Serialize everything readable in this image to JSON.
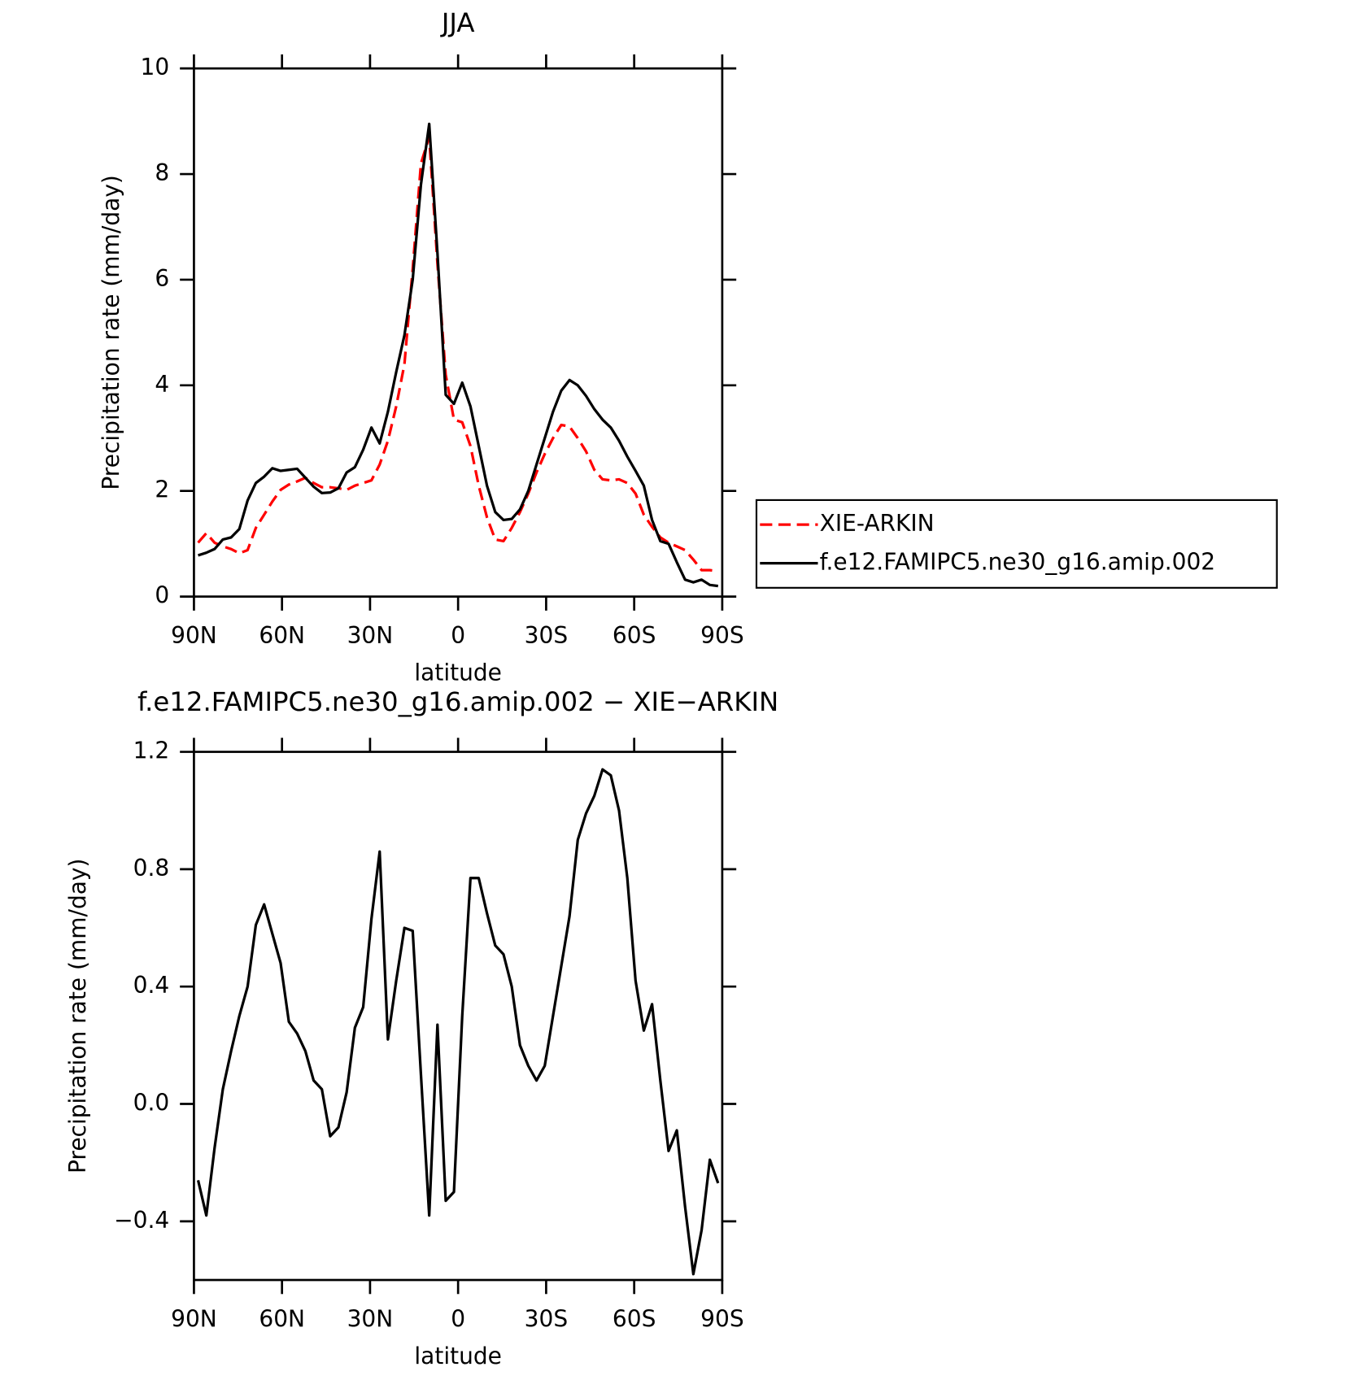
{
  "chart_data": [
    {
      "type": "line",
      "title": "JJA",
      "xlabel": "latitude",
      "ylabel": "Precipitation rate (mm/day)",
      "x": [
        88.59,
        85.78,
        82.97,
        80.16,
        77.34,
        74.53,
        71.72,
        68.91,
        66.09,
        63.28,
        60.47,
        57.66,
        54.84,
        52.03,
        49.22,
        46.41,
        43.59,
        40.78,
        37.97,
        35.16,
        32.34,
        29.53,
        26.72,
        23.91,
        21.09,
        18.28,
        15.47,
        12.66,
        9.84,
        7.03,
        4.22,
        1.41,
        -1.41,
        -4.22,
        -7.03,
        -9.84,
        -12.66,
        -15.47,
        -18.28,
        -21.09,
        -23.91,
        -26.72,
        -29.53,
        -32.34,
        -35.16,
        -37.97,
        -40.78,
        -43.59,
        -46.41,
        -49.22,
        -52.03,
        -54.84,
        -57.66,
        -60.47,
        -63.28,
        -66.09,
        -68.91,
        -71.72,
        -74.53,
        -77.34,
        -80.16,
        -82.97,
        -85.78,
        -88.59
      ],
      "xlim": [
        90,
        -90
      ],
      "xticks": [
        {
          "value": 90,
          "label": "90N"
        },
        {
          "value": 60,
          "label": "60N"
        },
        {
          "value": 30,
          "label": "30N"
        },
        0,
        {
          "value": -30,
          "label": "30S"
        },
        {
          "value": -60,
          "label": "60S"
        },
        {
          "value": -90,
          "label": "90S"
        }
      ],
      "ylim": [
        0,
        10
      ],
      "yticks": [
        0,
        2,
        4,
        6,
        8,
        10
      ],
      "legend": "right",
      "series": [
        {
          "name": "XIE-ARKIN",
          "color": "#ff0000",
          "dashed": true,
          "values": [
            1.02,
            1.2,
            1.02,
            0.95,
            0.9,
            0.82,
            0.88,
            1.3,
            1.55,
            1.8,
            2.02,
            2.12,
            2.18,
            2.25,
            2.15,
            2.07,
            2.07,
            2.05,
            2.02,
            2.1,
            2.15,
            2.2,
            2.5,
            2.95,
            3.6,
            4.4,
            6.2,
            8.2,
            8.7,
            6.3,
            4.2,
            3.35,
            3.3,
            2.85,
            2.1,
            1.5,
            1.08,
            1.05,
            1.3,
            1.6,
            1.95,
            2.35,
            2.7,
            3.0,
            3.25,
            3.22,
            3.0,
            2.75,
            2.4,
            2.22,
            2.2,
            2.22,
            2.15,
            1.95,
            1.55,
            1.32,
            1.12,
            1.02,
            0.95,
            0.88,
            0.7,
            0.5,
            0.5,
            0.48
          ]
        },
        {
          "name": "f.e12.FAMIPC5.ne30_g16.amip.002",
          "color": "#000000",
          "dashed": false,
          "values": [
            0.78,
            0.83,
            0.9,
            1.08,
            1.12,
            1.28,
            1.82,
            2.15,
            2.27,
            2.43,
            2.38,
            2.4,
            2.42,
            2.25,
            2.08,
            1.96,
            1.97,
            2.05,
            2.35,
            2.45,
            2.78,
            3.2,
            2.9,
            3.5,
            4.25,
            4.95,
            6.0,
            7.8,
            8.95,
            6.5,
            3.82,
            3.65,
            4.05,
            3.6,
            2.85,
            2.1,
            1.6,
            1.45,
            1.47,
            1.65,
            2.0,
            2.5,
            3.0,
            3.5,
            3.9,
            4.1,
            4.0,
            3.8,
            3.55,
            3.35,
            3.2,
            2.95,
            2.65,
            2.38,
            2.1,
            1.45,
            1.05,
            1.0,
            0.65,
            0.32,
            0.27,
            0.32,
            0.22,
            0.2
          ]
        }
      ]
    },
    {
      "type": "line",
      "title": "f.e12.FAMIPC5.ne30_g16.amip.002 − XIE−ARKIN",
      "xlabel": "latitude",
      "ylabel": "Precipitation rate (mm/day)",
      "x": [
        88.59,
        85.78,
        82.97,
        80.16,
        77.34,
        74.53,
        71.72,
        68.91,
        66.09,
        63.28,
        60.47,
        57.66,
        54.84,
        52.03,
        49.22,
        46.41,
        43.59,
        40.78,
        37.97,
        35.16,
        32.34,
        29.53,
        26.72,
        23.91,
        21.09,
        18.28,
        15.47,
        12.66,
        9.84,
        7.03,
        4.22,
        1.41,
        -1.41,
        -4.22,
        -7.03,
        -9.84,
        -12.66,
        -15.47,
        -18.28,
        -21.09,
        -23.91,
        -26.72,
        -29.53,
        -32.34,
        -35.16,
        -37.97,
        -40.78,
        -43.59,
        -46.41,
        -49.22,
        -52.03,
        -54.84,
        -57.66,
        -60.47,
        -63.28,
        -66.09,
        -68.91,
        -71.72,
        -74.53,
        -77.34,
        -80.16,
        -82.97,
        -85.78,
        -88.59
      ],
      "xlim": [
        90,
        -90
      ],
      "xticks": [
        {
          "value": 90,
          "label": "90N"
        },
        {
          "value": 60,
          "label": "60N"
        },
        {
          "value": 30,
          "label": "30N"
        },
        0,
        {
          "value": -30,
          "label": "30S"
        },
        {
          "value": -60,
          "label": "60S"
        },
        {
          "value": -90,
          "label": "90S"
        }
      ],
      "ylim": [
        -0.6,
        1.2
      ],
      "yticks": [
        {
          "value": -0.4,
          "label": "−0.4"
        },
        {
          "value": 0,
          "label": "0.0"
        },
        0.4,
        0.8,
        1.2
      ],
      "series": [
        {
          "color": "#000000",
          "dashed": false,
          "values": [
            -0.26,
            -0.38,
            -0.15,
            0.05,
            0.18,
            0.3,
            0.4,
            0.61,
            0.68,
            0.58,
            0.48,
            0.28,
            0.24,
            0.18,
            0.08,
            0.05,
            -0.11,
            -0.08,
            0.04,
            0.26,
            0.33,
            0.63,
            0.86,
            0.22,
            0.42,
            0.6,
            0.59,
            0.1,
            -0.38,
            0.27,
            -0.33,
            -0.3,
            0.3,
            0.77,
            0.77,
            0.65,
            0.54,
            0.51,
            0.4,
            0.2,
            0.13,
            0.08,
            0.13,
            0.3,
            0.47,
            0.64,
            0.9,
            0.99,
            1.05,
            1.14,
            1.12,
            1.0,
            0.77,
            0.42,
            0.25,
            0.34,
            0.08,
            -0.16,
            -0.09,
            -0.35,
            -0.58,
            -0.43,
            -0.19,
            -0.27
          ]
        }
      ]
    }
  ]
}
